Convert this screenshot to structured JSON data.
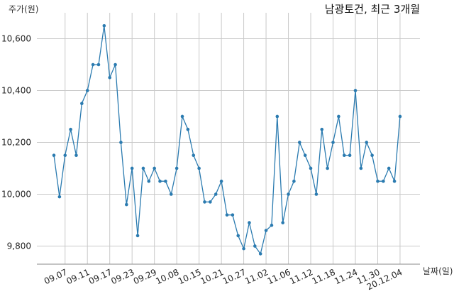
{
  "chart_data": {
    "type": "line",
    "title": "남광토건, 최근 3개월",
    "xlabel": "날짜(일)",
    "ylabel": "주가(원)",
    "ylim": [
      9730,
      10700
    ],
    "yticks": [
      9800,
      10000,
      10200,
      10400,
      10600
    ],
    "ytick_labels": [
      "9,800",
      "10,000",
      "10,200",
      "10,400",
      "10,600"
    ],
    "xticks": [
      {
        "label": "09.07",
        "index": 2
      },
      {
        "label": "09.11",
        "index": 6
      },
      {
        "label": "09.17",
        "index": 10
      },
      {
        "label": "09.23",
        "index": 14
      },
      {
        "label": "09.29",
        "index": 18
      },
      {
        "label": "10.08",
        "index": 22
      },
      {
        "label": "10.15",
        "index": 26
      },
      {
        "label": "10.21",
        "index": 30
      },
      {
        "label": "10.27",
        "index": 34
      },
      {
        "label": "11.02",
        "index": 38
      },
      {
        "label": "11.06",
        "index": 42
      },
      {
        "label": "11.12",
        "index": 46
      },
      {
        "label": "11.18",
        "index": 50
      },
      {
        "label": "11.24",
        "index": 54
      },
      {
        "label": "11.30",
        "index": 58
      },
      {
        "label": "20.12.04",
        "index": 62
      }
    ],
    "grid": true,
    "series": [
      {
        "color": "#2b7bb0",
        "values": [
          10150,
          9990,
          10150,
          10250,
          10150,
          10350,
          10400,
          10500,
          10500,
          10650,
          10450,
          10500,
          10200,
          9960,
          10100,
          9840,
          10100,
          10050,
          10100,
          10050,
          10050,
          10000,
          10100,
          10300,
          10250,
          10150,
          10100,
          9970,
          9970,
          10000,
          10050,
          9920,
          9920,
          9840,
          9790,
          9890,
          9800,
          9770,
          9860,
          9880,
          10300,
          9890,
          10000,
          10050,
          10200,
          10150,
          10100,
          10000,
          10250,
          10100,
          10200,
          10300,
          10150,
          10150,
          10400,
          10100,
          10200,
          10150,
          10050,
          10050,
          10100,
          10050,
          10300
        ]
      }
    ]
  }
}
